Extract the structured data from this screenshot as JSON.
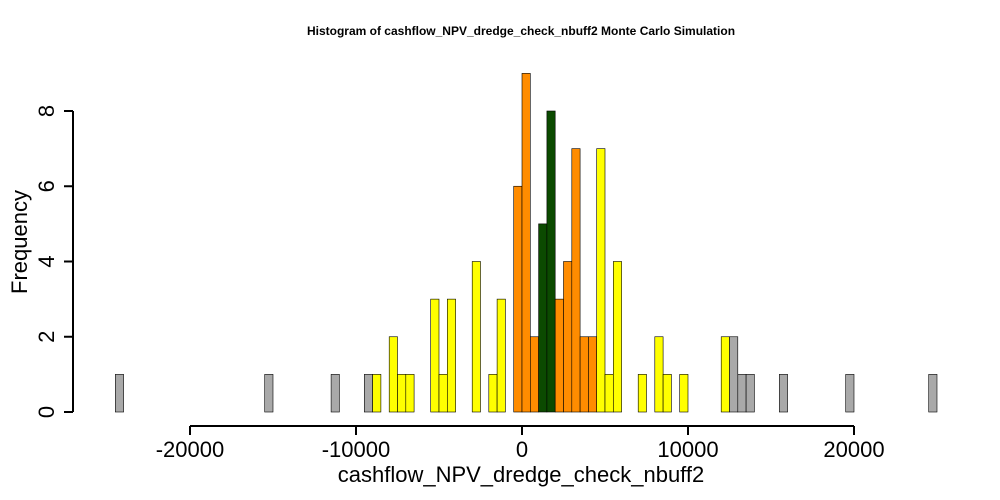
{
  "chart_data": {
    "type": "bar",
    "title": "Histogram of  cashflow_NPV_dredge_check_nbuff2  Monte Carlo Simulation",
    "xlabel": "cashflow_NPV_dredge_check_nbuff2",
    "ylabel": "Frequency",
    "xlim": [
      -25000,
      25000
    ],
    "ylim": [
      0,
      8
    ],
    "bin_width": 500,
    "x_ticks": [
      -20000,
      -10000,
      0,
      10000,
      20000
    ],
    "x_tick_labels": [
      "-20000",
      "-10000",
      "0",
      "10000",
      "20000"
    ],
    "y_ticks": [
      0,
      2,
      4,
      6,
      8
    ],
    "y_tick_labels": [
      "0",
      "2",
      "4",
      "6",
      "8"
    ],
    "grid": false,
    "colors": {
      "gray": "#a9a9a9",
      "yellow": "#ffff00",
      "orange": "#ff8c00",
      "green": "#0b4a00"
    },
    "bins": [
      {
        "x0": -24500,
        "x1": -24000,
        "count": 1,
        "color": "gray"
      },
      {
        "x0": -24000,
        "x1": -23500,
        "count": 0,
        "color": "gray"
      },
      {
        "x0": -23500,
        "x1": -23000,
        "count": 0,
        "color": "gray"
      },
      {
        "x0": -23000,
        "x1": -22500,
        "count": 0,
        "color": "gray"
      },
      {
        "x0": -22500,
        "x1": -22000,
        "count": 0,
        "color": "gray"
      },
      {
        "x0": -22000,
        "x1": -21500,
        "count": 0,
        "color": "gray"
      },
      {
        "x0": -21500,
        "x1": -21000,
        "count": 0,
        "color": "gray"
      },
      {
        "x0": -21000,
        "x1": -20500,
        "count": 0,
        "color": "gray"
      },
      {
        "x0": -20500,
        "x1": -20000,
        "count": 0,
        "color": "gray"
      },
      {
        "x0": -20000,
        "x1": -19500,
        "count": 0,
        "color": "gray"
      },
      {
        "x0": -19500,
        "x1": -19000,
        "count": 0,
        "color": "gray"
      },
      {
        "x0": -19000,
        "x1": -18500,
        "count": 0,
        "color": "gray"
      },
      {
        "x0": -18500,
        "x1": -18000,
        "count": 0,
        "color": "gray"
      },
      {
        "x0": -18000,
        "x1": -17500,
        "count": 0,
        "color": "gray"
      },
      {
        "x0": -17500,
        "x1": -17000,
        "count": 0,
        "color": "gray"
      },
      {
        "x0": -17000,
        "x1": -16500,
        "count": 0,
        "color": "gray"
      },
      {
        "x0": -16500,
        "x1": -16000,
        "count": 0,
        "color": "gray"
      },
      {
        "x0": -16000,
        "x1": -15500,
        "count": 0,
        "color": "gray"
      },
      {
        "x0": -15500,
        "x1": -15000,
        "count": 1,
        "color": "gray"
      },
      {
        "x0": -15000,
        "x1": -14500,
        "count": 0,
        "color": "gray"
      },
      {
        "x0": -14500,
        "x1": -14000,
        "count": 0,
        "color": "gray"
      },
      {
        "x0": -14000,
        "x1": -13500,
        "count": 0,
        "color": "gray"
      },
      {
        "x0": -13500,
        "x1": -13000,
        "count": 0,
        "color": "gray"
      },
      {
        "x0": -13000,
        "x1": -12500,
        "count": 0,
        "color": "gray"
      },
      {
        "x0": -12500,
        "x1": -12000,
        "count": 0,
        "color": "gray"
      },
      {
        "x0": -12000,
        "x1": -11500,
        "count": 0,
        "color": "gray"
      },
      {
        "x0": -11500,
        "x1": -11000,
        "count": 1,
        "color": "gray"
      },
      {
        "x0": -11000,
        "x1": -10500,
        "count": 0,
        "color": "gray"
      },
      {
        "x0": -10500,
        "x1": -10000,
        "count": 0,
        "color": "gray"
      },
      {
        "x0": -10000,
        "x1": -9500,
        "count": 0,
        "color": "gray"
      },
      {
        "x0": -9500,
        "x1": -9000,
        "count": 1,
        "color": "gray"
      },
      {
        "x0": -9000,
        "x1": -8500,
        "count": 1,
        "color": "yellow"
      },
      {
        "x0": -8500,
        "x1": -8000,
        "count": 0,
        "color": "yellow"
      },
      {
        "x0": -8000,
        "x1": -7500,
        "count": 2,
        "color": "yellow"
      },
      {
        "x0": -7500,
        "x1": -7000,
        "count": 1,
        "color": "yellow"
      },
      {
        "x0": -7000,
        "x1": -6500,
        "count": 1,
        "color": "yellow"
      },
      {
        "x0": -6500,
        "x1": -6000,
        "count": 0,
        "color": "yellow"
      },
      {
        "x0": -6000,
        "x1": -5500,
        "count": 0,
        "color": "yellow"
      },
      {
        "x0": -5500,
        "x1": -5000,
        "count": 3,
        "color": "yellow"
      },
      {
        "x0": -5000,
        "x1": -4500,
        "count": 1,
        "color": "yellow"
      },
      {
        "x0": -4500,
        "x1": -4000,
        "count": 3,
        "color": "yellow"
      },
      {
        "x0": -4000,
        "x1": -3500,
        "count": 0,
        "color": "yellow"
      },
      {
        "x0": -3500,
        "x1": -3000,
        "count": 0,
        "color": "yellow"
      },
      {
        "x0": -3000,
        "x1": -2500,
        "count": 4,
        "color": "yellow"
      },
      {
        "x0": -2500,
        "x1": -2000,
        "count": 0,
        "color": "yellow"
      },
      {
        "x0": -2000,
        "x1": -1500,
        "count": 1,
        "color": "yellow"
      },
      {
        "x0": -1500,
        "x1": -1000,
        "count": 3,
        "color": "yellow"
      },
      {
        "x0": -1000,
        "x1": -500,
        "count": 0,
        "color": "yellow"
      },
      {
        "x0": -500,
        "x1": 0,
        "count": 6,
        "color": "orange"
      },
      {
        "x0": 0,
        "x1": 500,
        "count": 9,
        "color": "orange"
      },
      {
        "x0": 500,
        "x1": 1000,
        "count": 2,
        "color": "orange"
      },
      {
        "x0": 1000,
        "x1": 1500,
        "count": 5,
        "color": "green"
      },
      {
        "x0": 1500,
        "x1": 2000,
        "count": 8,
        "color": "green"
      },
      {
        "x0": 2000,
        "x1": 2500,
        "count": 3,
        "color": "orange"
      },
      {
        "x0": 2500,
        "x1": 3000,
        "count": 4,
        "color": "orange"
      },
      {
        "x0": 3000,
        "x1": 3500,
        "count": 7,
        "color": "orange"
      },
      {
        "x0": 3500,
        "x1": 4000,
        "count": 2,
        "color": "orange"
      },
      {
        "x0": 4000,
        "x1": 4500,
        "count": 2,
        "color": "orange"
      },
      {
        "x0": 4500,
        "x1": 5000,
        "count": 7,
        "color": "yellow"
      },
      {
        "x0": 5000,
        "x1": 5500,
        "count": 1,
        "color": "yellow"
      },
      {
        "x0": 5500,
        "x1": 6000,
        "count": 4,
        "color": "yellow"
      },
      {
        "x0": 6000,
        "x1": 6500,
        "count": 0,
        "color": "yellow"
      },
      {
        "x0": 6500,
        "x1": 7000,
        "count": 0,
        "color": "yellow"
      },
      {
        "x0": 7000,
        "x1": 7500,
        "count": 1,
        "color": "yellow"
      },
      {
        "x0": 7500,
        "x1": 8000,
        "count": 0,
        "color": "yellow"
      },
      {
        "x0": 8000,
        "x1": 8500,
        "count": 2,
        "color": "yellow"
      },
      {
        "x0": 8500,
        "x1": 9000,
        "count": 1,
        "color": "yellow"
      },
      {
        "x0": 9000,
        "x1": 9500,
        "count": 0,
        "color": "yellow"
      },
      {
        "x0": 9500,
        "x1": 10000,
        "count": 1,
        "color": "yellow"
      },
      {
        "x0": 10000,
        "x1": 10500,
        "count": 0,
        "color": "yellow"
      },
      {
        "x0": 10500,
        "x1": 11000,
        "count": 0,
        "color": "yellow"
      },
      {
        "x0": 11000,
        "x1": 11500,
        "count": 0,
        "color": "yellow"
      },
      {
        "x0": 11500,
        "x1": 12000,
        "count": 0,
        "color": "yellow"
      },
      {
        "x0": 12000,
        "x1": 12500,
        "count": 2,
        "color": "yellow"
      },
      {
        "x0": 12500,
        "x1": 13000,
        "count": 2,
        "color": "gray"
      },
      {
        "x0": 13000,
        "x1": 13500,
        "count": 1,
        "color": "gray"
      },
      {
        "x0": 13500,
        "x1": 14000,
        "count": 1,
        "color": "gray"
      },
      {
        "x0": 14000,
        "x1": 14500,
        "count": 0,
        "color": "gray"
      },
      {
        "x0": 14500,
        "x1": 15000,
        "count": 0,
        "color": "gray"
      },
      {
        "x0": 15000,
        "x1": 15500,
        "count": 0,
        "color": "gray"
      },
      {
        "x0": 15500,
        "x1": 16000,
        "count": 1,
        "color": "gray"
      },
      {
        "x0": 16000,
        "x1": 16500,
        "count": 0,
        "color": "gray"
      },
      {
        "x0": 16500,
        "x1": 17000,
        "count": 0,
        "color": "gray"
      },
      {
        "x0": 17000,
        "x1": 17500,
        "count": 0,
        "color": "gray"
      },
      {
        "x0": 17500,
        "x1": 18000,
        "count": 0,
        "color": "gray"
      },
      {
        "x0": 18000,
        "x1": 18500,
        "count": 0,
        "color": "gray"
      },
      {
        "x0": 18500,
        "x1": 19000,
        "count": 0,
        "color": "gray"
      },
      {
        "x0": 19000,
        "x1": 19500,
        "count": 0,
        "color": "gray"
      },
      {
        "x0": 19500,
        "x1": 20000,
        "count": 1,
        "color": "gray"
      },
      {
        "x0": 20000,
        "x1": 20500,
        "count": 0,
        "color": "gray"
      },
      {
        "x0": 20500,
        "x1": 21000,
        "count": 0,
        "color": "gray"
      },
      {
        "x0": 21000,
        "x1": 21500,
        "count": 0,
        "color": "gray"
      },
      {
        "x0": 21500,
        "x1": 22000,
        "count": 0,
        "color": "gray"
      },
      {
        "x0": 22000,
        "x1": 22500,
        "count": 0,
        "color": "gray"
      },
      {
        "x0": 22500,
        "x1": 23000,
        "count": 0,
        "color": "gray"
      },
      {
        "x0": 23000,
        "x1": 23500,
        "count": 0,
        "color": "gray"
      },
      {
        "x0": 23500,
        "x1": 24000,
        "count": 0,
        "color": "gray"
      },
      {
        "x0": 24000,
        "x1": 24500,
        "count": 0,
        "color": "gray"
      },
      {
        "x0": 24500,
        "x1": 25000,
        "count": 1,
        "color": "gray"
      }
    ]
  }
}
